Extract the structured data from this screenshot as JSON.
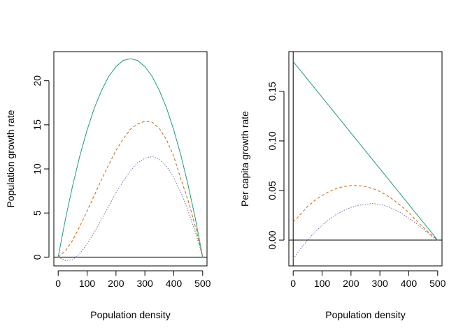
{
  "chart_data": [
    {
      "type": "line",
      "xlabel": "Population density",
      "ylabel": "Population growth rate",
      "xlim": [
        -15,
        515
      ],
      "ylim": [
        -1.0,
        23.3
      ],
      "xticks": [
        0,
        100,
        200,
        300,
        400,
        500
      ],
      "xtick_labels": [
        "0",
        "100",
        "200",
        "300",
        "400",
        "500"
      ],
      "yticks": [
        0,
        5,
        10,
        15,
        20
      ],
      "ytick_labels": [
        "0",
        "5",
        "10",
        "15",
        "20"
      ],
      "hline": 0,
      "vline": null,
      "grid": false,
      "series": [
        {
          "color": "#1b9e77",
          "linestyle": "solid",
          "x": [
            0,
            25,
            50,
            75,
            100,
            125,
            150,
            175,
            200,
            225,
            250,
            275,
            300,
            325,
            350,
            375,
            400,
            425,
            450,
            475,
            500
          ],
          "y": [
            0,
            4.3,
            8.1,
            11.5,
            14.4,
            16.9,
            18.9,
            20.5,
            21.6,
            22.3,
            22.5,
            22.3,
            21.6,
            20.5,
            18.9,
            16.9,
            14.4,
            11.5,
            8.1,
            4.3,
            0
          ]
        },
        {
          "color": "#d95f02",
          "linestyle": "dashed",
          "x": [
            0,
            25,
            50,
            75,
            100,
            125,
            150,
            175,
            200,
            225,
            250,
            275,
            300,
            325,
            350,
            375,
            400,
            425,
            450,
            475,
            500
          ],
          "y": [
            0,
            0.7,
            1.9,
            3.5,
            5.2,
            7.0,
            8.8,
            10.5,
            12.1,
            13.4,
            14.5,
            15.1,
            15.4,
            15.3,
            14.6,
            13.3,
            11.4,
            8.8,
            6.4,
            3.4,
            0
          ]
        },
        {
          "color": "#7570b3",
          "linestyle": "dotted",
          "x": [
            0,
            25,
            50,
            75,
            100,
            125,
            150,
            175,
            200,
            225,
            250,
            275,
            300,
            325,
            350,
            375,
            400,
            425,
            450,
            475,
            500
          ],
          "y": [
            0,
            -0.4,
            -0.3,
            0.4,
            1.5,
            2.8,
            4.3,
            5.8,
            7.3,
            8.6,
            9.8,
            10.7,
            11.2,
            11.4,
            11.1,
            10.3,
            9.0,
            7.3,
            5.2,
            2.8,
            0
          ]
        }
      ]
    },
    {
      "type": "line",
      "xlabel": "Population density",
      "ylabel": "Per capita growth rate",
      "xlim": [
        -15,
        515
      ],
      "ylim": [
        -0.026,
        0.19
      ],
      "xticks": [
        0,
        100,
        200,
        300,
        400,
        500
      ],
      "xtick_labels": [
        "0",
        "100",
        "200",
        "300",
        "400",
        "500"
      ],
      "yticks": [
        0.0,
        0.05,
        0.1,
        0.15
      ],
      "ytick_labels": [
        "0.00",
        "0.05",
        "0.10",
        "0.15"
      ],
      "hline": 0,
      "vline": 0,
      "grid": false,
      "series": [
        {
          "color": "#1b9e77",
          "linestyle": "solid",
          "x": [
            0,
            500
          ],
          "y": [
            0.18,
            0.0
          ]
        },
        {
          "color": "#d95f02",
          "linestyle": "dashed",
          "x": [
            0,
            25,
            50,
            75,
            100,
            125,
            150,
            175,
            200,
            225,
            250,
            275,
            300,
            325,
            350,
            375,
            400,
            425,
            450,
            475,
            500
          ],
          "y": [
            0.018,
            0.026,
            0.034,
            0.04,
            0.045,
            0.049,
            0.052,
            0.054,
            0.055,
            0.055,
            0.054,
            0.052,
            0.049,
            0.045,
            0.04,
            0.034,
            0.028,
            0.02,
            0.013,
            0.006,
            0.0
          ]
        },
        {
          "color": "#7570b3",
          "linestyle": "dotted",
          "x": [
            0,
            25,
            50,
            75,
            100,
            125,
            150,
            175,
            200,
            225,
            250,
            275,
            300,
            325,
            350,
            375,
            400,
            425,
            450,
            475,
            500
          ],
          "y": [
            -0.019,
            -0.009,
            0.0,
            0.008,
            0.015,
            0.021,
            0.026,
            0.03,
            0.033,
            0.035,
            0.036,
            0.037,
            0.036,
            0.034,
            0.031,
            0.027,
            0.022,
            0.017,
            0.011,
            0.005,
            0.0
          ]
        }
      ]
    }
  ]
}
